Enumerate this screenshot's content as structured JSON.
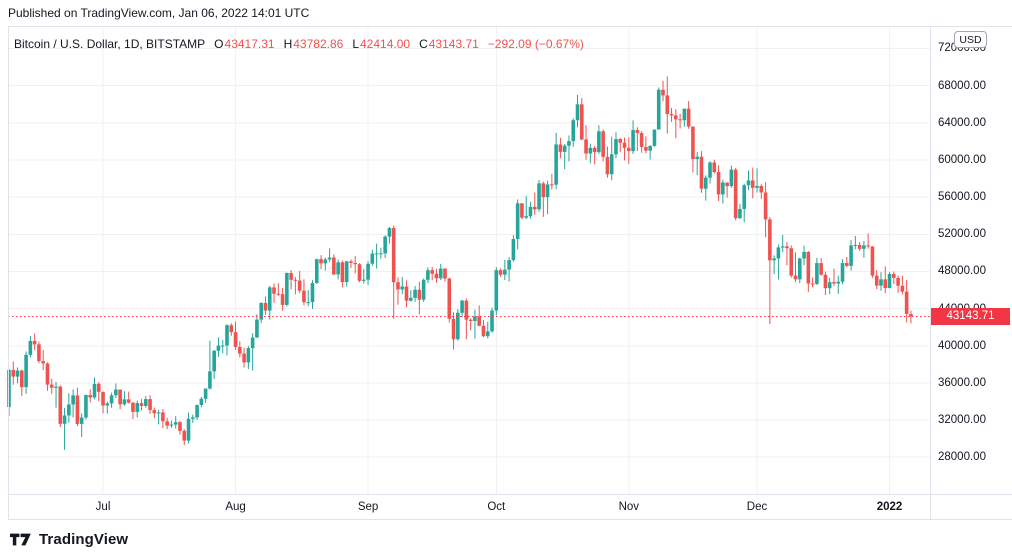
{
  "published_line": "Published on TradingView.com, Jan 06, 2022 14:01 UTC",
  "legend": {
    "symbol": "Bitcoin / U.S. Dollar, 1D, BITSTAMP",
    "o_label": "O",
    "o": "43417.31",
    "h_label": "H",
    "h": "43782.86",
    "l_label": "L",
    "l": "42414.00",
    "c_label": "C",
    "c": "43143.71",
    "change": "−292.09 (−0.67%)"
  },
  "price_axis": {
    "currency_button": "USD",
    "last_price_label": "43143.71"
  },
  "logo_text": "TradingView",
  "colors": {
    "up": "#26a69a",
    "down": "#ef5350",
    "red": "#ef5350",
    "tag": "#f23645",
    "text": "#131722",
    "grid": "#f0f1f5",
    "border": "#e0e3eb"
  },
  "chart_data": {
    "type": "candlestick",
    "title": "Bitcoin / U.S. Dollar",
    "interval": "1D",
    "exchange": "BITSTAMP",
    "start_date": "2021-06-09",
    "end_date": "2022-01-06",
    "last_price": 43143.71,
    "price_ticks": [
      72000,
      68000,
      64000,
      60000,
      56000,
      52000,
      48000,
      44000,
      40000,
      36000,
      32000,
      28000
    ],
    "y_domain": [
      23990,
      74420
    ],
    "month_ticks": [
      {
        "label": "Jul",
        "index": 22
      },
      {
        "label": "Aug",
        "index": 53
      },
      {
        "label": "Sep",
        "index": 84
      },
      {
        "label": "Oct",
        "index": 114
      },
      {
        "label": "Nov",
        "index": 145
      },
      {
        "label": "Dec",
        "index": 175
      },
      {
        "label": "2022",
        "index": 206,
        "bold": true
      }
    ],
    "candles": [
      [
        33400,
        37500,
        32450,
        37400
      ],
      [
        37400,
        38300,
        35800,
        36680
      ],
      [
        36680,
        37670,
        35950,
        37330
      ],
      [
        37330,
        37450,
        34600,
        35550
      ],
      [
        35550,
        39380,
        34820,
        39020
      ],
      [
        39020,
        41050,
        38730,
        40520
      ],
      [
        40520,
        41330,
        39530,
        40150
      ],
      [
        40150,
        40450,
        38120,
        38350
      ],
      [
        38350,
        39550,
        37370,
        38100
      ],
      [
        38100,
        38210,
        35150,
        35820
      ],
      [
        35820,
        36460,
        34830,
        35480
      ],
      [
        35480,
        36100,
        33340,
        35600
      ],
      [
        35600,
        35750,
        31250,
        31600
      ],
      [
        31600,
        33300,
        28800,
        32500
      ],
      [
        32500,
        34880,
        31700,
        33680
      ],
      [
        33680,
        35300,
        32290,
        34660
      ],
      [
        34660,
        35500,
        31350,
        31590
      ],
      [
        31590,
        32710,
        30170,
        32280
      ],
      [
        32280,
        34750,
        32070,
        34700
      ],
      [
        34700,
        35300,
        33900,
        34430
      ],
      [
        34430,
        36600,
        34250,
        35900
      ],
      [
        35900,
        36090,
        34060,
        35040
      ],
      [
        35040,
        35060,
        32720,
        33570
      ],
      [
        33570,
        33980,
        32700,
        33800
      ],
      [
        33800,
        34950,
        33320,
        34670
      ],
      [
        34670,
        35940,
        34370,
        35290
      ],
      [
        35290,
        35290,
        33160,
        33700
      ],
      [
        33700,
        35100,
        33530,
        34230
      ],
      [
        34230,
        35070,
        33780,
        33880
      ],
      [
        33880,
        33930,
        32110,
        32880
      ],
      [
        32880,
        34100,
        32280,
        33820
      ],
      [
        33820,
        34260,
        33020,
        33520
      ],
      [
        33520,
        34600,
        33330,
        34260
      ],
      [
        34260,
        34680,
        32660,
        33080
      ],
      [
        33080,
        33340,
        32200,
        32730
      ],
      [
        32730,
        33110,
        31550,
        32820
      ],
      [
        32820,
        33190,
        31140,
        31870
      ],
      [
        31870,
        32250,
        31020,
        31400
      ],
      [
        31400,
        31950,
        31160,
        31520
      ],
      [
        31520,
        32430,
        31080,
        31780
      ],
      [
        31780,
        31890,
        30430,
        30840
      ],
      [
        30840,
        31050,
        29300,
        29790
      ],
      [
        29790,
        32800,
        29480,
        32140
      ],
      [
        32140,
        32590,
        31700,
        32290
      ],
      [
        32290,
        33650,
        32030,
        33630
      ],
      [
        33630,
        34500,
        33400,
        34290
      ],
      [
        34290,
        35400,
        33870,
        35400
      ],
      [
        35400,
        40550,
        35280,
        37240
      ],
      [
        37240,
        39540,
        36400,
        39460
      ],
      [
        39460,
        40900,
        38800,
        40020
      ],
      [
        40020,
        40640,
        39200,
        40030
      ],
      [
        40030,
        42320,
        38960,
        42210
      ],
      [
        42210,
        42420,
        41070,
        41460
      ],
      [
        41460,
        42600,
        39540,
        39870
      ],
      [
        39870,
        40480,
        38730,
        39150
      ],
      [
        39150,
        39790,
        37660,
        38210
      ],
      [
        38210,
        39970,
        37500,
        39750
      ],
      [
        39750,
        41350,
        37330,
        40880
      ],
      [
        40880,
        43390,
        40850,
        42820
      ],
      [
        42820,
        44700,
        42450,
        44600
      ],
      [
        44600,
        45310,
        43320,
        43790
      ],
      [
        43790,
        46450,
        42820,
        46280
      ],
      [
        46280,
        46700,
        44620,
        45600
      ],
      [
        45600,
        46740,
        45360,
        45560
      ],
      [
        45560,
        46230,
        43770,
        44400
      ],
      [
        44400,
        47890,
        44240,
        47830
      ],
      [
        47830,
        48150,
        46070,
        47100
      ],
      [
        47100,
        47380,
        45540,
        47020
      ],
      [
        47020,
        48050,
        45680,
        45930
      ],
      [
        45930,
        47160,
        44380,
        44690
      ],
      [
        44690,
        46000,
        44260,
        44700
      ],
      [
        44700,
        47060,
        43960,
        46760
      ],
      [
        46760,
        49380,
        46660,
        49320
      ],
      [
        49320,
        49750,
        48240,
        48870
      ],
      [
        48870,
        49490,
        48090,
        49290
      ],
      [
        49290,
        50500,
        49030,
        49500
      ],
      [
        49500,
        49860,
        47600,
        47680
      ],
      [
        47680,
        49270,
        47130,
        48980
      ],
      [
        48980,
        49160,
        46280,
        46860
      ],
      [
        46860,
        49150,
        46350,
        49080
      ],
      [
        49080,
        49300,
        48370,
        48910
      ],
      [
        48910,
        49650,
        47800,
        48780
      ],
      [
        48780,
        48890,
        46850,
        46990
      ],
      [
        46990,
        48250,
        46700,
        47110
      ],
      [
        47110,
        49120,
        46540,
        48830
      ],
      [
        48830,
        50340,
        48610,
        49920
      ],
      [
        49920,
        51000,
        48320,
        49940
      ],
      [
        49940,
        50550,
        49370,
        49950
      ],
      [
        49950,
        51880,
        49450,
        51750
      ],
      [
        51750,
        52780,
        51000,
        52670
      ],
      [
        52670,
        52920,
        42900,
        46840
      ],
      [
        46840,
        47350,
        44420,
        46060
      ],
      [
        46060,
        47400,
        45550,
        46380
      ],
      [
        46380,
        47050,
        44150,
        44850
      ],
      [
        44850,
        45990,
        44750,
        45160
      ],
      [
        45160,
        46430,
        44730,
        46030
      ],
      [
        46030,
        46890,
        43370,
        44960
      ],
      [
        44960,
        47230,
        44720,
        47100
      ],
      [
        47100,
        48450,
        46730,
        48140
      ],
      [
        48140,
        48500,
        47060,
        47750
      ],
      [
        47750,
        48290,
        46780,
        47260
      ],
      [
        47260,
        48820,
        47070,
        48300
      ],
      [
        48300,
        48370,
        46880,
        47240
      ],
      [
        47240,
        47330,
        42500,
        42900
      ],
      [
        42900,
        43600,
        39600,
        40700
      ],
      [
        40700,
        43950,
        40550,
        43550
      ],
      [
        43550,
        44960,
        43070,
        44860
      ],
      [
        44860,
        45100,
        40700,
        42810
      ],
      [
        42810,
        42960,
        41670,
        42670
      ],
      [
        42670,
        43900,
        40750,
        43160
      ],
      [
        43160,
        44350,
        42100,
        42150
      ],
      [
        42150,
        42770,
        40930,
        41030
      ],
      [
        41030,
        42590,
        40790,
        41550
      ],
      [
        41550,
        44100,
        41410,
        43790
      ],
      [
        43790,
        48470,
        43280,
        48140
      ],
      [
        48140,
        48340,
        47430,
        47650
      ],
      [
        47650,
        49230,
        47080,
        48200
      ],
      [
        48200,
        49530,
        46920,
        49220
      ],
      [
        49220,
        51900,
        49060,
        51490
      ],
      [
        51490,
        55750,
        50380,
        55340
      ],
      [
        55340,
        55350,
        53610,
        53790
      ],
      [
        53790,
        56100,
        53630,
        53950
      ],
      [
        53950,
        55500,
        53670,
        54950
      ],
      [
        54950,
        56500,
        54080,
        54690
      ],
      [
        54690,
        57840,
        54410,
        57480
      ],
      [
        57480,
        57680,
        53880,
        56000
      ],
      [
        56000,
        57770,
        54170,
        57370
      ],
      [
        57370,
        58520,
        56820,
        57340
      ],
      [
        57340,
        62930,
        56850,
        61670
      ],
      [
        61670,
        62380,
        60170,
        60870
      ],
      [
        60870,
        61720,
        59010,
        61530
      ],
      [
        61530,
        62640,
        59840,
        62030
      ],
      [
        62030,
        64480,
        61420,
        64280
      ],
      [
        64280,
        67000,
        63530,
        65990
      ],
      [
        65990,
        66650,
        62120,
        62210
      ],
      [
        62210,
        63740,
        60020,
        60690
      ],
      [
        60690,
        61750,
        59640,
        61300
      ],
      [
        61300,
        61500,
        59530,
        60850
      ],
      [
        60850,
        63730,
        60650,
        63080
      ],
      [
        63080,
        63290,
        59850,
        60330
      ],
      [
        60330,
        61450,
        58100,
        58470
      ],
      [
        58470,
        62500,
        57820,
        60600
      ],
      [
        60600,
        62980,
        60170,
        62250
      ],
      [
        62250,
        62360,
        60850,
        61860
      ],
      [
        61860,
        62410,
        59950,
        61300
      ],
      [
        61300,
        62440,
        59570,
        60950
      ],
      [
        60950,
        64270,
        60650,
        63220
      ],
      [
        63220,
        63520,
        60950,
        62900
      ],
      [
        62900,
        63090,
        60770,
        61400
      ],
      [
        61400,
        62540,
        60720,
        61000
      ],
      [
        61000,
        61580,
        60050,
        61520
      ],
      [
        61520,
        63290,
        61400,
        63280
      ],
      [
        63280,
        67800,
        63280,
        67560
      ],
      [
        67560,
        68530,
        66330,
        66950
      ],
      [
        66950,
        69000,
        62840,
        64950
      ],
      [
        64950,
        65600,
        64110,
        64800
      ],
      [
        64800,
        65460,
        62330,
        64380
      ],
      [
        64380,
        64970,
        63390,
        64280
      ],
      [
        64280,
        65510,
        63580,
        65520
      ],
      [
        65520,
        66340,
        63360,
        63600
      ],
      [
        63600,
        63620,
        58640,
        60100
      ],
      [
        60100,
        60850,
        58380,
        60350
      ],
      [
        60350,
        60950,
        56470,
        56900
      ],
      [
        56900,
        58340,
        55620,
        58100
      ],
      [
        58100,
        59860,
        57470,
        59730
      ],
      [
        59730,
        60030,
        58530,
        58700
      ],
      [
        58700,
        59450,
        55590,
        56290
      ],
      [
        56290,
        57880,
        55300,
        57570
      ],
      [
        57570,
        57590,
        55950,
        57180
      ],
      [
        57180,
        59400,
        57000,
        58960
      ],
      [
        58960,
        59120,
        53500,
        53740
      ],
      [
        53740,
        55280,
        53620,
        54730
      ],
      [
        54730,
        57450,
        53290,
        57280
      ],
      [
        57280,
        58870,
        56750,
        57800
      ],
      [
        57800,
        59180,
        55880,
        57000
      ],
      [
        57000,
        59100,
        56500,
        57200
      ],
      [
        57200,
        57380,
        55810,
        56500
      ],
      [
        56500,
        57600,
        51680,
        53600
      ],
      [
        53600,
        53860,
        42330,
        49200
      ],
      [
        49200,
        49730,
        47730,
        49400
      ],
      [
        49400,
        50890,
        47130,
        50580
      ],
      [
        50580,
        51940,
        50070,
        50700
      ],
      [
        50700,
        51180,
        48660,
        50500
      ],
      [
        50500,
        50800,
        47330,
        47550
      ],
      [
        47550,
        50050,
        46860,
        47150
      ],
      [
        47150,
        49480,
        46750,
        49400
      ],
      [
        49400,
        50780,
        48670,
        50100
      ],
      [
        50100,
        50200,
        45770,
        46700
      ],
      [
        46700,
        47350,
        46290,
        46650
      ],
      [
        46650,
        49450,
        46550,
        48900
      ],
      [
        48900,
        49430,
        47540,
        47650
      ],
      [
        47650,
        47990,
        45460,
        46200
      ],
      [
        46200,
        47300,
        45550,
        46850
      ],
      [
        46850,
        48300,
        46430,
        46700
      ],
      [
        46700,
        47540,
        45580,
        46900
      ],
      [
        46900,
        49330,
        46630,
        48900
      ],
      [
        48900,
        49570,
        48450,
        48600
      ],
      [
        48600,
        51380,
        48080,
        50800
      ],
      [
        50800,
        51810,
        50390,
        50850
      ],
      [
        50850,
        51170,
        50220,
        50430
      ],
      [
        50430,
        51280,
        49470,
        50800
      ],
      [
        50800,
        52090,
        50450,
        50700
      ],
      [
        50700,
        50710,
        47320,
        47550
      ],
      [
        47550,
        48150,
        46100,
        46470
      ],
      [
        46470,
        47930,
        45920,
        47150
      ],
      [
        47150,
        48550,
        45650,
        46210
      ],
      [
        46210,
        47950,
        46210,
        47730
      ],
      [
        47730,
        47990,
        46650,
        47300
      ],
      [
        47300,
        47570,
        45700,
        46460
      ],
      [
        46460,
        47520,
        45530,
        45830
      ],
      [
        45830,
        47070,
        42500,
        43425
      ],
      [
        43417.31,
        43782.86,
        42414.0,
        43143.71
      ]
    ]
  }
}
